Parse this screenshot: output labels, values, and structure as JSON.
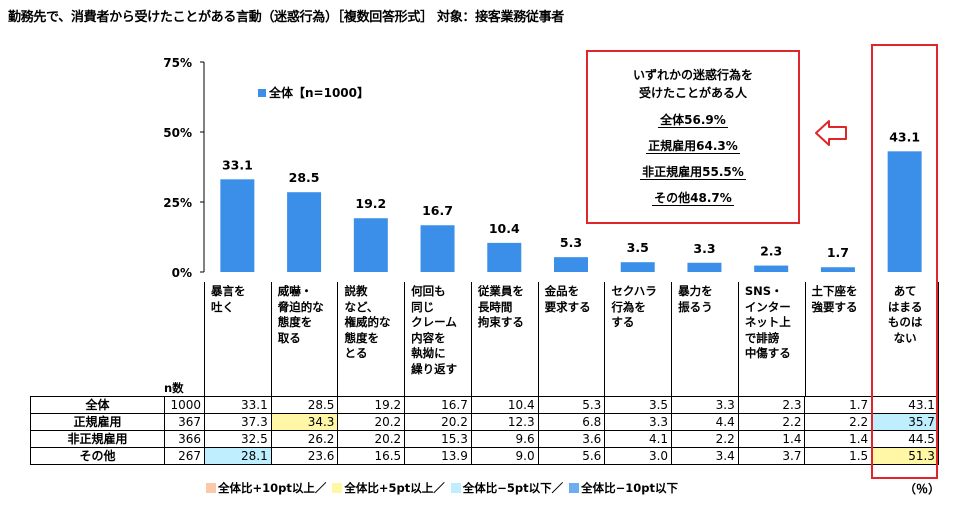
{
  "title": "勤務先で、消費者から受けたことがある言動（迷惑行為）［複数回答形式］ 対象：接客業務従事者",
  "legend_top": "全体【n=1000】",
  "callout": {
    "heading_line1": "いずれかの迷惑行為を",
    "heading_line2": "受けたことがある人",
    "lines": [
      "全体56.9%",
      "正規雇用64.3%",
      "非正規雇用55.5%",
      "その他48.7%"
    ]
  },
  "n_label": "n数",
  "unit": "（％）",
  "legend_bottom": [
    "全体比+10pt以上／",
    "全体比+5pt以上／",
    "全体比−5pt以下／",
    "全体比−10pt以下"
  ],
  "colors": {
    "bar": "#3c8fe8",
    "highlight_red": "#e0262a",
    "plus10": "#fbc9a8",
    "plus5": "#fff7a6",
    "minus5": "#bfefff",
    "minus10": "#6aaef0"
  },
  "chart_data": {
    "type": "bar",
    "categories": [
      "暴言を\n吐く",
      "威嚇・\n脅迫的な\n態度を\n取る",
      "説教\nなど、\n権威的な\n態度を\nとる",
      "何回も\n同じ\nクレーム\n内容を\n執拗に\n繰り返す",
      "従業員を\n長時間\n拘束する",
      "金品を\n要求する",
      "セクハラ\n行為を\nする",
      "暴力を\n振るう",
      "SNS・\nインター\nネット上\nで誹謗\n中傷する",
      "土下座を\n強要する",
      "あて\nはまる\nものは\nない"
    ],
    "values": [
      33.1,
      28.5,
      19.2,
      16.7,
      10.4,
      5.3,
      3.5,
      3.3,
      2.3,
      1.7,
      43.1
    ],
    "yticks": [
      "75%",
      "50%",
      "25%",
      "0%"
    ],
    "ylim": [
      0,
      75
    ],
    "series_name": "全体【n=1000】"
  },
  "table": {
    "rows": [
      {
        "label": "全体",
        "n": "1000",
        "values": [
          "33.1",
          "28.5",
          "19.2",
          "16.7",
          "10.4",
          "5.3",
          "3.5",
          "3.3",
          "2.3",
          "1.7",
          "43.1"
        ],
        "hl": [
          "",
          "",
          "",
          "",
          "",
          "",
          "",
          "",
          "",
          "",
          ""
        ]
      },
      {
        "label": "正規雇用",
        "n": "367",
        "values": [
          "37.3",
          "34.3",
          "20.2",
          "20.2",
          "12.3",
          "6.8",
          "3.3",
          "4.4",
          "2.2",
          "2.2",
          "35.7"
        ],
        "hl": [
          "",
          "plus5",
          "",
          "",
          "",
          "",
          "",
          "",
          "",
          "",
          "minus5"
        ]
      },
      {
        "label": "非正規雇用",
        "n": "366",
        "values": [
          "32.5",
          "26.2",
          "20.2",
          "15.3",
          "9.6",
          "3.6",
          "4.1",
          "2.2",
          "1.4",
          "1.4",
          "44.5"
        ],
        "hl": [
          "",
          "",
          "",
          "",
          "",
          "",
          "",
          "",
          "",
          "",
          ""
        ]
      },
      {
        "label": "その他",
        "n": "267",
        "values": [
          "28.1",
          "23.6",
          "16.5",
          "13.9",
          "9.0",
          "5.6",
          "3.0",
          "3.4",
          "3.7",
          "1.5",
          "51.3"
        ],
        "hl": [
          "minus5",
          "",
          "",
          "",
          "",
          "",
          "",
          "",
          "",
          "",
          "plus5"
        ]
      }
    ]
  }
}
